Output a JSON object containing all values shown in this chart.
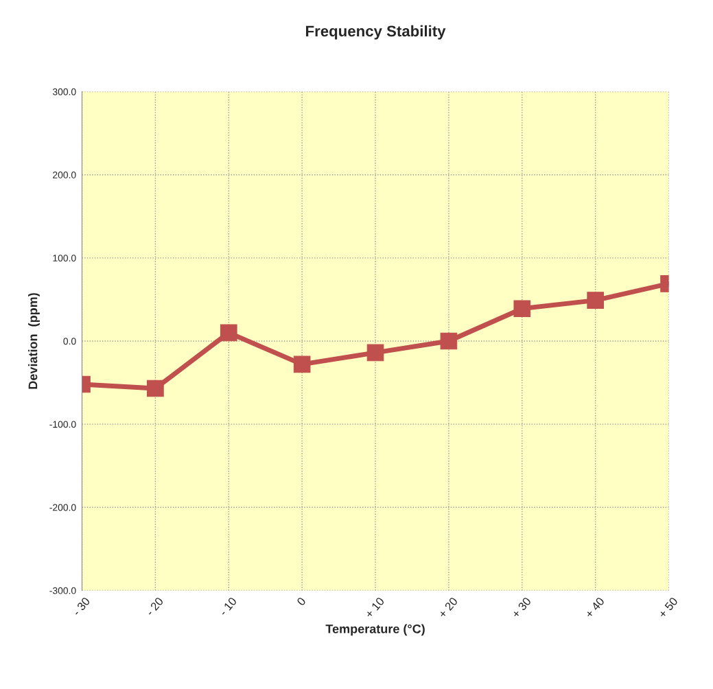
{
  "chart_data": {
    "type": "line",
    "title": "Frequency Stability",
    "xlabel": "Temperature (°C)",
    "ylabel": "Deviation  (ppm)",
    "categories": [
      "- 30",
      "- 20",
      "- 10",
      "0",
      "+ 10",
      "+ 20",
      "+ 30",
      "+ 40",
      "+ 50"
    ],
    "series": [
      {
        "color": "#c0504d",
        "values": [
          -52,
          -57,
          10,
          -28,
          -14,
          0,
          39,
          49,
          69
        ]
      }
    ],
    "ylim": [
      -300,
      300
    ],
    "yticks": [
      {
        "value": -300,
        "label": "-300.0"
      },
      {
        "value": -200,
        "label": "-200.0"
      },
      {
        "value": -100,
        "label": "-100.0"
      },
      {
        "value": 0,
        "label": "0.0"
      },
      {
        "value": 100,
        "label": "100.0"
      },
      {
        "value": 200,
        "label": "200.0"
      },
      {
        "value": 300,
        "label": "300.0"
      }
    ],
    "grid": true,
    "marker": "square",
    "line_style": "solid"
  }
}
